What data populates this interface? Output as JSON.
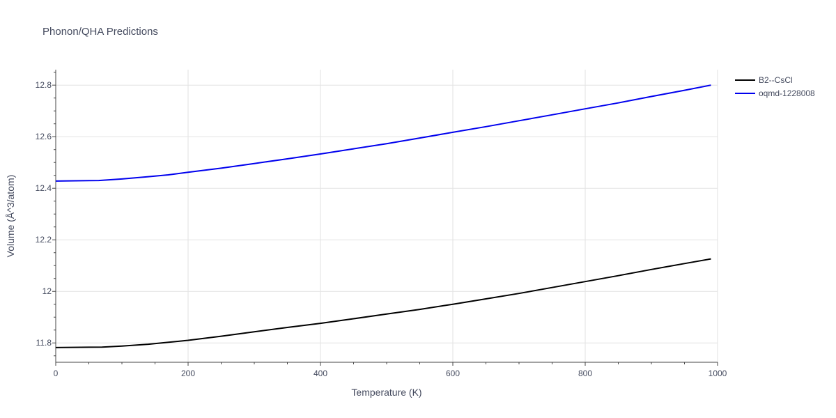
{
  "chart_data": {
    "type": "line",
    "title": "Phonon/QHA Predictions",
    "xlabel": "Temperature (K)",
    "ylabel": "Volume (Å^3/atom)",
    "xlim": [
      0,
      1000
    ],
    "ylim": [
      11.725,
      12.86
    ],
    "x_ticks": [
      0,
      200,
      400,
      600,
      800,
      1000
    ],
    "x_tick_labels": [
      "0",
      "200",
      "400",
      "600",
      "800",
      "1000"
    ],
    "y_ticks": [
      11.8,
      12.0,
      12.2,
      12.4,
      12.6,
      12.8
    ],
    "y_tick_labels": [
      "11.8",
      "12",
      "12.2",
      "12.4",
      "12.6",
      "12.8"
    ],
    "grid": true,
    "legend_position": "top-right",
    "series": [
      {
        "name": "B2--CsCl",
        "color": "#000000",
        "x": [
          0,
          70,
          100,
          140,
          200,
          250,
          300,
          350,
          400,
          450,
          500,
          550,
          600,
          650,
          700,
          750,
          800,
          850,
          900,
          950,
          990
        ],
        "y": [
          11.782,
          11.784,
          11.788,
          11.795,
          11.81,
          11.826,
          11.843,
          11.86,
          11.876,
          11.894,
          11.912,
          11.93,
          11.95,
          11.971,
          11.992,
          12.015,
          12.038,
          12.061,
          12.085,
          12.108,
          12.126
        ]
      },
      {
        "name": "oqmd-1228008",
        "color": "#0000ee",
        "x": [
          0,
          65,
          100,
          140,
          170,
          200,
          250,
          300,
          350,
          400,
          450,
          500,
          550,
          600,
          650,
          700,
          750,
          800,
          850,
          900,
          950,
          990
        ],
        "y": [
          12.428,
          12.43,
          12.436,
          12.445,
          12.452,
          12.462,
          12.478,
          12.496,
          12.514,
          12.533,
          12.553,
          12.573,
          12.595,
          12.617,
          12.639,
          12.662,
          12.685,
          12.708,
          12.731,
          12.756,
          12.78,
          12.8
        ]
      }
    ]
  }
}
